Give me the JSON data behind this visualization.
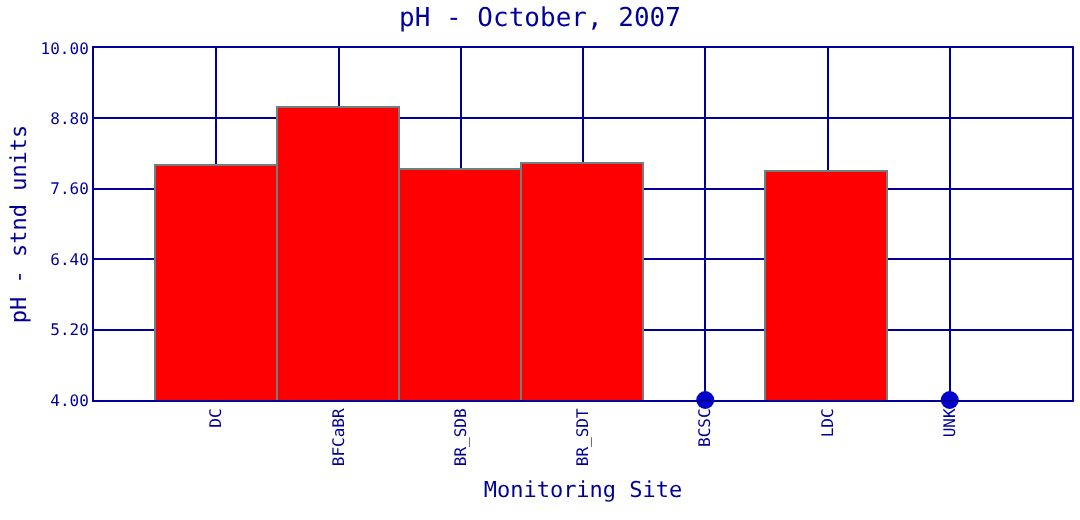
{
  "chart_data": {
    "type": "bar",
    "title": "pH - October, 2007",
    "xlabel": "Monitoring Site",
    "ylabel": "pH - stnd units",
    "categories": [
      "DC",
      "BFCaBR",
      "BR_SDB",
      "BR_SDT",
      "BCSC",
      "LDC",
      "UNK"
    ],
    "series": [
      {
        "color": "#ff0000",
        "values": [
          8.0,
          8.99,
          7.92,
          8.02,
          null,
          7.89,
          null
        ]
      },
      {
        "type": "scatter",
        "color": "#0000cc",
        "marker": "circle",
        "values": [
          null,
          null,
          null,
          null,
          4.0,
          null,
          4.0
        ]
      }
    ],
    "ylim": [
      4.0,
      10.0
    ],
    "yticks": [
      {
        "value": 4.0,
        "label": "4.00"
      },
      {
        "value": 5.2,
        "label": "5.20"
      },
      {
        "value": 6.4,
        "label": "6.40"
      },
      {
        "value": 7.6,
        "label": "7.60"
      },
      {
        "value": 8.8,
        "label": "8.80"
      },
      {
        "value": 10.0,
        "label": "10.00"
      }
    ],
    "grid": true
  }
}
